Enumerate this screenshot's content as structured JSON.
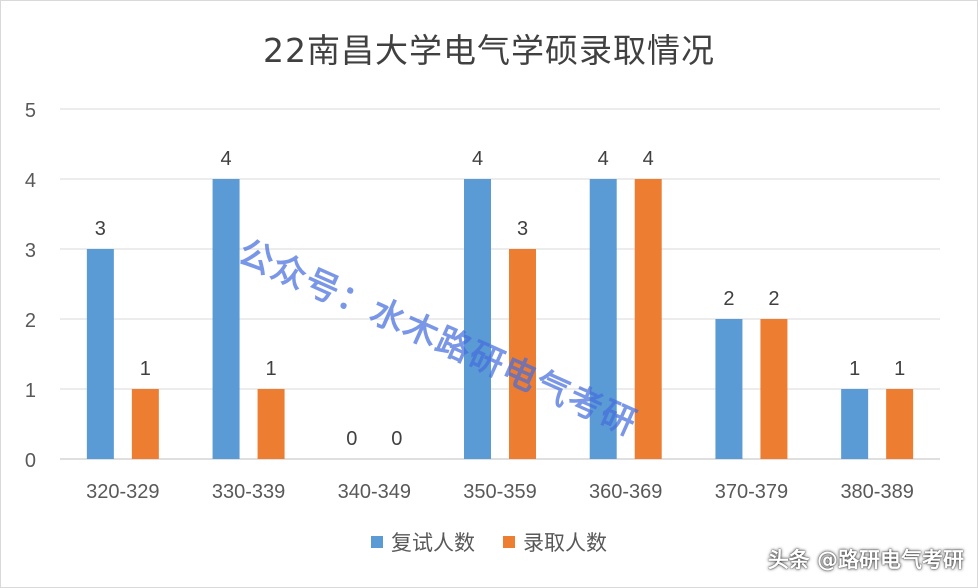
{
  "chart_data": {
    "type": "bar",
    "title": "22南昌大学电气学硕录取情况",
    "categories": [
      "320-329",
      "330-339",
      "340-349",
      "350-359",
      "360-369",
      "370-379",
      "380-389"
    ],
    "series": [
      {
        "name": "复试人数",
        "values": [
          3,
          4,
          0,
          4,
          4,
          2,
          1
        ],
        "color": "#5b9bd5"
      },
      {
        "name": "录取人数",
        "values": [
          1,
          1,
          0,
          3,
          4,
          2,
          1
        ],
        "color": "#ed7d31"
      }
    ],
    "ylim": [
      0,
      5
    ],
    "yticks": [
      "0",
      "1",
      "2",
      "3",
      "4",
      "5"
    ],
    "grid": true,
    "legend": "bottom"
  },
  "watermark": "公众号：水木路研电气考研",
  "footer": "头条 @路研电气考研"
}
